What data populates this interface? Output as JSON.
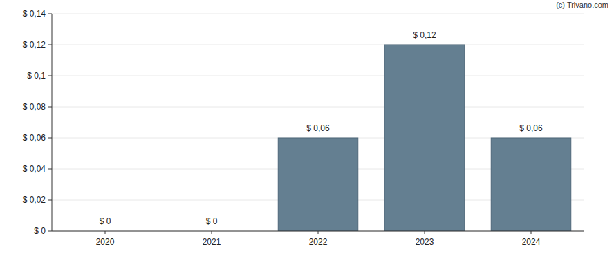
{
  "chart_data": {
    "type": "bar",
    "annotations": [
      "(c) Trivano.com"
    ],
    "categories": [
      "2020",
      "2021",
      "2022",
      "2023",
      "2024"
    ],
    "values": [
      0,
      0,
      0.06,
      0.12,
      0.06
    ],
    "value_labels": [
      "$ 0",
      "$ 0",
      "$ 0,06",
      "$ 0,12",
      "$ 0,06"
    ],
    "color": "#647f91",
    "ylim": [
      0,
      0.14
    ],
    "yticks": [
      {
        "value": 0,
        "label": "$ 0"
      },
      {
        "value": 0.02,
        "label": "$ 0,02"
      },
      {
        "value": 0.04,
        "label": "$ 0,04"
      },
      {
        "value": 0.06,
        "label": "$ 0,06"
      },
      {
        "value": 0.08,
        "label": "$ 0,08"
      },
      {
        "value": 0.1,
        "label": "$ 0,1"
      },
      {
        "value": 0.12,
        "label": "$ 0,12"
      },
      {
        "value": 0.14,
        "label": "$ 0,14"
      }
    ],
    "grid": true,
    "data_labels": true
  }
}
